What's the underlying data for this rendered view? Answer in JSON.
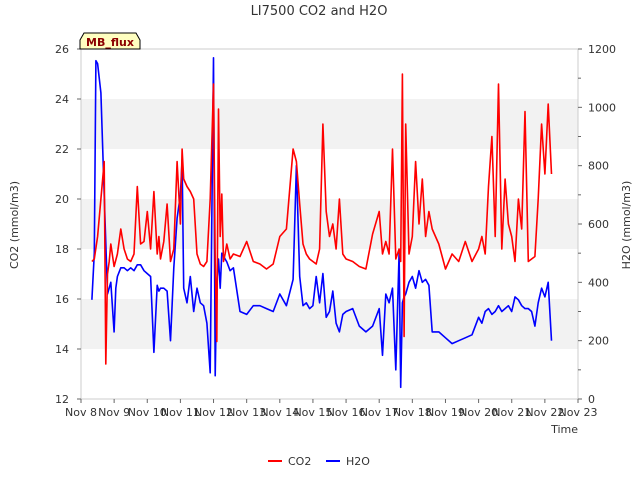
{
  "chart_data": {
    "type": "line",
    "title": "LI7500 CO2 and H2O",
    "badge": "MB_flux",
    "xlabel": "Time",
    "ylabel_left": "CO2 (mmol/m3)",
    "ylabel_right": "H2O (mmol/m3)",
    "x_ticks": [
      "Nov 8",
      "Nov 9",
      "Nov 10",
      "Nov 11",
      "Nov 12",
      "Nov 13",
      "Nov 14",
      "Nov 15",
      "Nov 16",
      "Nov 17",
      "Nov 18",
      "Nov 19",
      "Nov 20",
      "Nov 21",
      "Nov 22",
      "Nov 23"
    ],
    "xlim": [
      0,
      15
    ],
    "ylim_left": [
      12,
      26
    ],
    "left_ticks": [
      "12",
      "14",
      "16",
      "18",
      "20",
      "22",
      "24",
      "26"
    ],
    "ylim_right": [
      0,
      1200
    ],
    "right_ticks": [
      "0",
      "200",
      "400",
      "600",
      "800",
      "1000",
      "1200"
    ],
    "grid": "alternating horizontal bands",
    "legend_position": "bottom-center",
    "colors": {
      "co2": "#ff0000",
      "h2o": "#0000ff",
      "band": "#f2f2f2",
      "badge_bg": "#ffffc0"
    },
    "series": [
      {
        "name": "CO2",
        "axis": "left",
        "x": [
          0.33,
          0.4,
          0.5,
          0.6,
          0.7,
          0.75,
          0.8,
          0.85,
          0.9,
          1.0,
          1.1,
          1.2,
          1.3,
          1.4,
          1.5,
          1.6,
          1.7,
          1.8,
          1.9,
          2.0,
          2.1,
          2.2,
          2.3,
          2.35,
          2.4,
          2.5,
          2.6,
          2.7,
          2.8,
          2.9,
          3.0,
          3.05,
          3.1,
          3.2,
          3.3,
          3.4,
          3.5,
          3.6,
          3.7,
          3.8,
          3.9,
          4.0,
          4.05,
          4.1,
          4.15,
          4.2,
          4.25,
          4.3,
          4.35,
          4.4,
          4.5,
          4.6,
          4.8,
          5.0,
          5.2,
          5.4,
          5.6,
          5.8,
          6.0,
          6.2,
          6.4,
          6.5,
          6.6,
          6.7,
          6.8,
          6.9,
          7.0,
          7.1,
          7.2,
          7.3,
          7.4,
          7.5,
          7.6,
          7.7,
          7.8,
          7.9,
          8.0,
          8.2,
          8.4,
          8.6,
          8.8,
          9.0,
          9.1,
          9.2,
          9.3,
          9.4,
          9.5,
          9.6,
          9.65,
          9.7,
          9.75,
          9.8,
          9.9,
          10.0,
          10.1,
          10.2,
          10.3,
          10.4,
          10.5,
          10.6,
          10.8,
          11.0,
          11.2,
          11.4,
          11.6,
          11.8,
          12.0,
          12.1,
          12.2,
          12.3,
          12.4,
          12.5,
          12.6,
          12.7,
          12.8,
          12.9,
          13.0,
          13.1,
          13.2,
          13.3,
          13.4,
          13.5,
          13.6,
          13.7,
          13.8,
          13.9,
          14.0,
          14.1,
          14.2
        ],
        "values": [
          17.5,
          17.6,
          18.5,
          20.0,
          21.5,
          13.4,
          17.0,
          17.5,
          18.2,
          17.3,
          17.8,
          18.8,
          18.0,
          17.6,
          17.5,
          17.8,
          20.5,
          18.2,
          18.3,
          19.5,
          18.0,
          20.3,
          17.8,
          18.5,
          17.6,
          18.3,
          19.8,
          17.5,
          18.0,
          21.5,
          19.0,
          22.0,
          20.8,
          20.5,
          20.3,
          20.0,
          17.8,
          17.4,
          17.3,
          17.5,
          20.0,
          24.6,
          17.5,
          14.3,
          23.6,
          18.5,
          20.2,
          17.5,
          17.8,
          18.2,
          17.6,
          17.8,
          17.7,
          18.3,
          17.5,
          17.4,
          17.2,
          17.4,
          18.5,
          18.8,
          22.0,
          21.5,
          19.8,
          18.2,
          17.8,
          17.6,
          17.5,
          17.4,
          18.0,
          23.0,
          19.5,
          18.5,
          19.0,
          18.0,
          20.0,
          17.8,
          17.6,
          17.5,
          17.3,
          17.2,
          18.6,
          19.5,
          17.8,
          18.3,
          17.8,
          22.0,
          17.6,
          18.0,
          17.5,
          25.0,
          14.5,
          23.0,
          17.8,
          18.5,
          21.5,
          19.0,
          20.8,
          18.5,
          19.5,
          18.8,
          18.2,
          17.2,
          17.8,
          17.5,
          18.3,
          17.5,
          18.0,
          18.5,
          17.8,
          20.5,
          22.5,
          18.5,
          24.6,
          18.0,
          20.8,
          19.0,
          18.5,
          17.5,
          20.0,
          18.8,
          23.5,
          17.5,
          17.6,
          17.7,
          20.0,
          23.0,
          21.0,
          23.8,
          21.0
        ],
        "values_note": ""
      },
      {
        "name": "H2O",
        "axis": "right",
        "x": [
          0.33,
          0.4,
          0.45,
          0.5,
          0.6,
          0.7,
          0.8,
          0.9,
          1.0,
          1.05,
          1.1,
          1.2,
          1.3,
          1.4,
          1.5,
          1.6,
          1.7,
          1.8,
          1.9,
          2.0,
          2.1,
          2.2,
          2.3,
          2.35,
          2.4,
          2.5,
          2.6,
          2.7,
          2.8,
          2.9,
          3.0,
          3.05,
          3.1,
          3.2,
          3.3,
          3.4,
          3.5,
          3.6,
          3.7,
          3.8,
          3.9,
          4.0,
          4.05,
          4.1,
          4.15,
          4.2,
          4.25,
          4.3,
          4.35,
          4.4,
          4.5,
          4.6,
          4.8,
          5.0,
          5.2,
          5.4,
          5.6,
          5.8,
          6.0,
          6.2,
          6.4,
          6.5,
          6.6,
          6.7,
          6.8,
          6.9,
          7.0,
          7.1,
          7.2,
          7.3,
          7.4,
          7.5,
          7.6,
          7.7,
          7.8,
          7.9,
          8.0,
          8.2,
          8.4,
          8.6,
          8.8,
          9.0,
          9.1,
          9.2,
          9.3,
          9.4,
          9.5,
          9.6,
          9.65,
          9.7,
          9.75,
          9.8,
          9.9,
          10.0,
          10.1,
          10.2,
          10.3,
          10.4,
          10.5,
          10.6,
          10.8,
          11.0,
          11.2,
          11.4,
          11.6,
          11.8,
          12.0,
          12.1,
          12.2,
          12.3,
          12.4,
          12.5,
          12.6,
          12.7,
          12.8,
          12.9,
          13.0,
          13.1,
          13.2,
          13.3,
          13.4,
          13.5,
          13.6,
          13.7,
          13.8,
          13.9,
          14.0,
          14.1,
          14.2
        ],
        "values": [
          340,
          500,
          1160,
          1150,
          1050,
          700,
          360,
          400,
          230,
          380,
          420,
          450,
          450,
          440,
          450,
          440,
          460,
          460,
          440,
          430,
          420,
          160,
          390,
          370,
          380,
          380,
          370,
          200,
          450,
          620,
          700,
          820,
          380,
          330,
          420,
          300,
          380,
          330,
          320,
          260,
          90,
          1170,
          80,
          400,
          480,
          380,
          500,
          490,
          480,
          470,
          440,
          450,
          300,
          290,
          320,
          320,
          310,
          300,
          360,
          320,
          410,
          800,
          420,
          320,
          330,
          310,
          320,
          420,
          330,
          430,
          280,
          300,
          370,
          260,
          230,
          290,
          300,
          310,
          250,
          230,
          250,
          310,
          150,
          360,
          330,
          380,
          100,
          500,
          40,
          330,
          350,
          360,
          400,
          420,
          380,
          440,
          400,
          410,
          390,
          230,
          230,
          210,
          190,
          200,
          210,
          220,
          280,
          260,
          300,
          310,
          290,
          300,
          320,
          300,
          310,
          320,
          300,
          350,
          340,
          320,
          310,
          310,
          300,
          250,
          330,
          380,
          350,
          400,
          200
        ]
      }
    ]
  }
}
